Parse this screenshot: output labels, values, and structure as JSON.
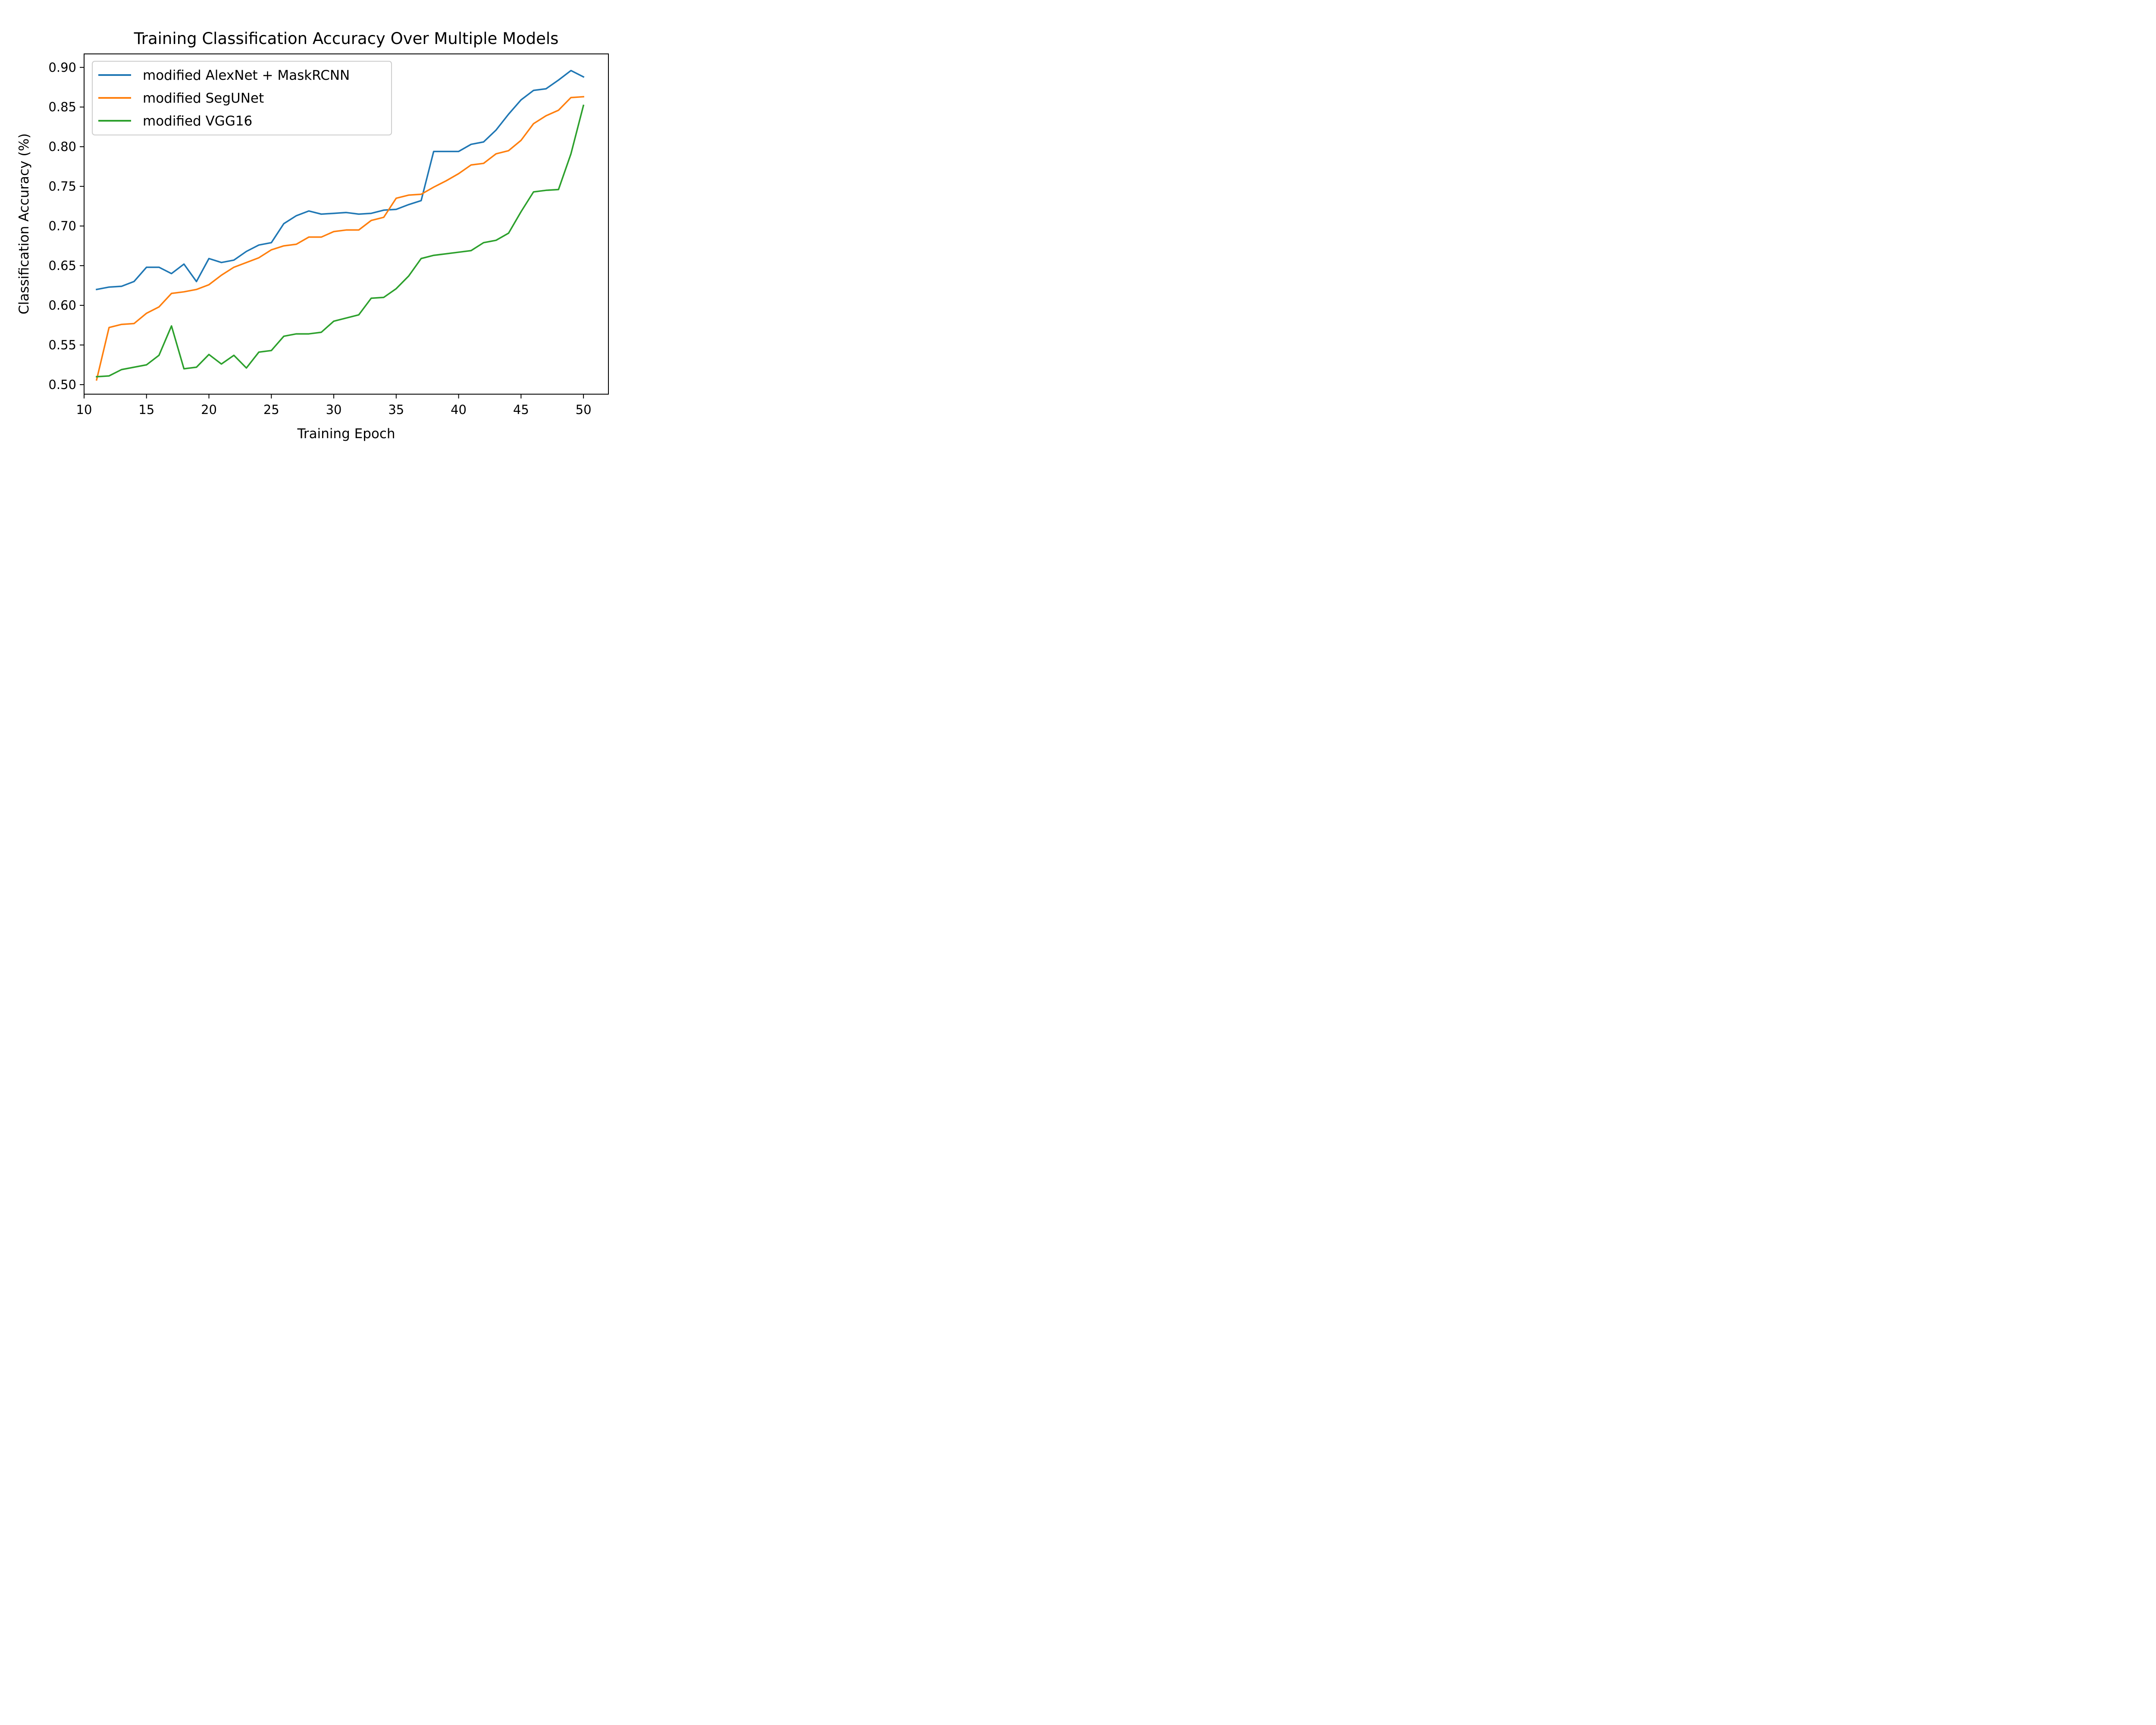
{
  "chart_data": {
    "type": "line",
    "title": "Training Classification Accuracy Over Multiple Models",
    "xlabel": "Training Epoch",
    "ylabel": "Classification Accuracy (%)",
    "xlim": [
      10,
      52
    ],
    "ylim": [
      0.488,
      0.917
    ],
    "xticks": [
      10,
      15,
      20,
      25,
      30,
      35,
      40,
      45,
      50
    ],
    "yticks": [
      0.5,
      0.55,
      0.6,
      0.65,
      0.7,
      0.75,
      0.8,
      0.85,
      0.9
    ],
    "xtick_labels": [
      "10",
      "15",
      "20",
      "25",
      "30",
      "35",
      "40",
      "45",
      "50"
    ],
    "ytick_labels": [
      "0.50",
      "0.55",
      "0.60",
      "0.65",
      "0.70",
      "0.75",
      "0.80",
      "0.85",
      "0.90"
    ],
    "grid": false,
    "legend_position": "top-left",
    "x": [
      11,
      12,
      13,
      14,
      15,
      16,
      17,
      18,
      19,
      20,
      21,
      22,
      23,
      24,
      25,
      26,
      27,
      28,
      29,
      30,
      31,
      32,
      33,
      34,
      35,
      36,
      37,
      38,
      39,
      40,
      41,
      42,
      43,
      44,
      45,
      46,
      47,
      48,
      49,
      50
    ],
    "series": [
      {
        "name": "modified AlexNet + MaskRCNN",
        "color": "#1f77b4",
        "values": [
          0.62,
          0.623,
          0.624,
          0.63,
          0.648,
          0.648,
          0.64,
          0.652,
          0.63,
          0.659,
          0.654,
          0.657,
          0.668,
          0.676,
          0.679,
          0.703,
          0.713,
          0.719,
          0.715,
          0.716,
          0.717,
          0.715,
          0.716,
          0.72,
          0.721,
          0.727,
          0.732,
          0.794,
          0.794,
          0.794,
          0.803,
          0.806,
          0.821,
          0.841,
          0.859,
          0.871,
          0.873,
          0.884,
          0.896,
          0.888
        ]
      },
      {
        "name": "modified SegUNet",
        "color": "#ff7f0e",
        "values": [
          0.506,
          0.572,
          0.576,
          0.577,
          0.59,
          0.598,
          0.615,
          0.617,
          0.62,
          0.626,
          0.638,
          0.648,
          0.654,
          0.66,
          0.67,
          0.675,
          0.677,
          0.686,
          0.686,
          0.693,
          0.695,
          0.695,
          0.707,
          0.711,
          0.735,
          0.739,
          0.74,
          0.749,
          0.757,
          0.766,
          0.777,
          0.779,
          0.791,
          0.795,
          0.808,
          0.829,
          0.839,
          0.846,
          0.862,
          0.863
        ]
      },
      {
        "name": "modified VGG16",
        "color": "#2ca02c",
        "values": [
          0.51,
          0.511,
          0.519,
          0.522,
          0.525,
          0.537,
          0.574,
          0.52,
          0.522,
          0.538,
          0.526,
          0.537,
          0.521,
          0.541,
          0.543,
          0.561,
          0.564,
          0.564,
          0.566,
          0.58,
          0.584,
          0.588,
          0.609,
          0.61,
          0.621,
          0.637,
          0.659,
          0.663,
          0.665,
          0.667,
          0.669,
          0.679,
          0.682,
          0.691,
          0.718,
          0.743,
          0.745,
          0.746,
          0.791,
          0.852
        ]
      }
    ]
  }
}
